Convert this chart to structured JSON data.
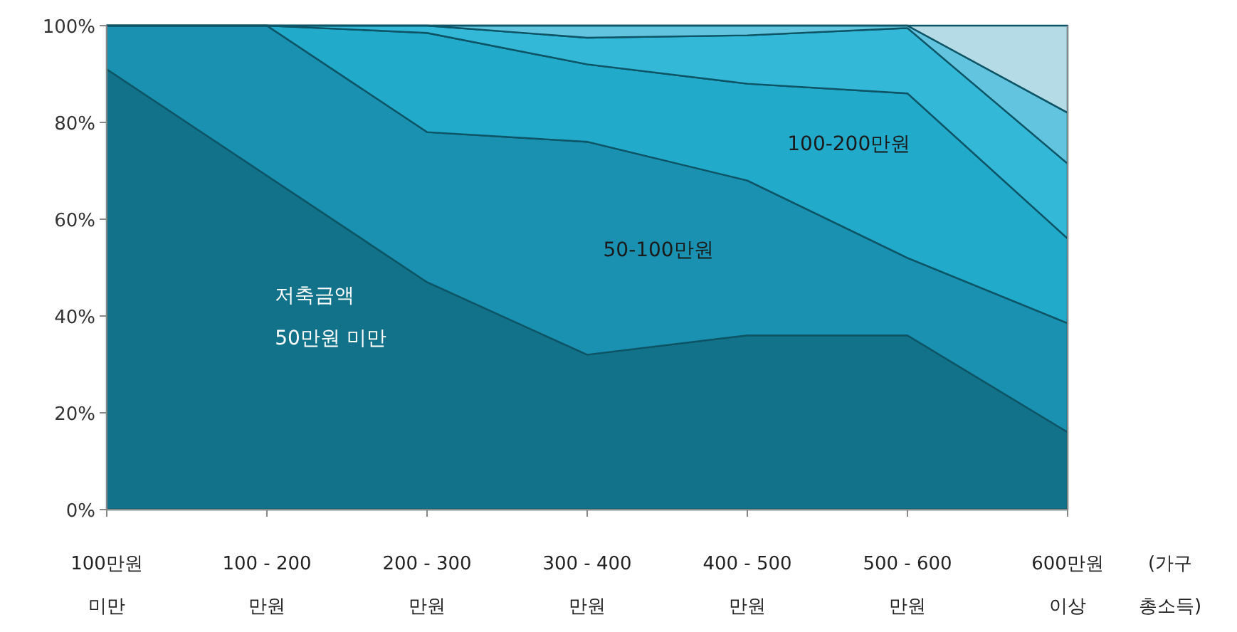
{
  "chart_data": {
    "type": "area",
    "stacked": true,
    "categories": [
      "100만원\n미만",
      "100 - 200\n만원",
      "200 - 300\n만원",
      "300 - 400\n만원",
      "400 - 500\n만원",
      "500 - 600\n만원",
      "600만원\n이상"
    ],
    "xlabel": "(가구\n총소득)",
    "series": [
      {
        "name": "저축금액\n50만원 미만",
        "color": "#12728a",
        "values": [
          91,
          69,
          47,
          32,
          36,
          36,
          16
        ]
      },
      {
        "name": "50-100만원",
        "color": "#1a91b0",
        "values": [
          9,
          31,
          31,
          44,
          32,
          16,
          22.5
        ]
      },
      {
        "name": "100-200만원",
        "color": "#22aacb",
        "values": [
          0,
          0,
          20.5,
          16,
          20,
          34,
          17.5
        ]
      },
      {
        "color": "#34b8d8",
        "values": [
          0,
          0,
          1.5,
          5.5,
          10,
          13.5,
          15.5
        ]
      },
      {
        "color": "#62c4de",
        "values": [
          0,
          0,
          0,
          2.5,
          2,
          0.5,
          10.5
        ]
      },
      {
        "color": "#b5dbe6",
        "values": [
          0,
          0,
          0,
          0,
          0,
          0,
          18
        ]
      }
    ],
    "ylim": [
      0,
      100
    ],
    "yticks": [
      {
        "value": 0,
        "label": "0%"
      },
      {
        "value": 20,
        "label": "20%"
      },
      {
        "value": 40,
        "label": "40%"
      },
      {
        "value": 60,
        "label": "60%"
      },
      {
        "value": 80,
        "label": "80%"
      },
      {
        "value": 100,
        "label": "100%"
      }
    ],
    "grid": false,
    "legend": false
  }
}
